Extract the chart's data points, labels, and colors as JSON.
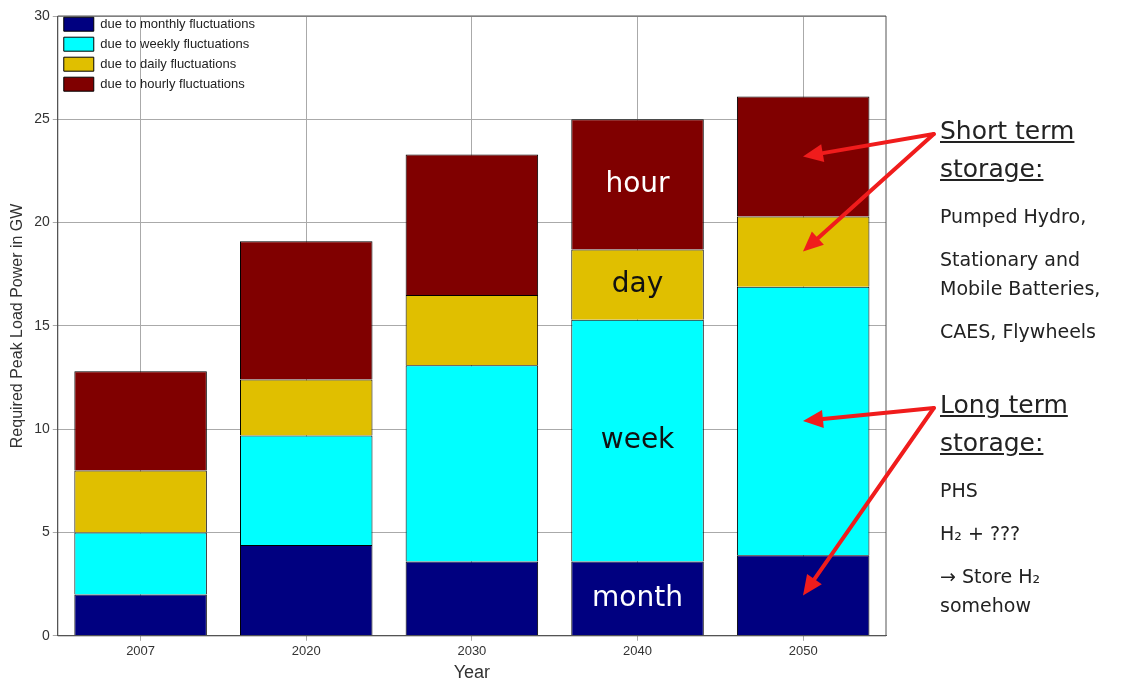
{
  "chart_data": {
    "type": "bar",
    "stacked": true,
    "xlabel": "Year",
    "ylabel": "Required Peak Load Power in GW",
    "categories": [
      "2007",
      "2020",
      "2030",
      "2040",
      "2050"
    ],
    "series": [
      {
        "name": "due to monthly fluctuations",
        "color": "#000080",
        "values": [
          2.0,
          4.4,
          3.6,
          3.6,
          3.9
        ]
      },
      {
        "name": "due to weekly fluctuations",
        "color": "#00ffff",
        "values": [
          3.0,
          5.3,
          9.5,
          11.7,
          13.0
        ]
      },
      {
        "name": "due to daily fluctuations",
        "color": "#e0bf00",
        "values": [
          3.0,
          2.7,
          3.4,
          3.4,
          3.4
        ]
      },
      {
        "name": "due to hourly fluctuations",
        "color": "#800000",
        "values": [
          4.8,
          6.7,
          6.8,
          6.3,
          5.8
        ]
      }
    ],
    "ylim": [
      0,
      30
    ],
    "yticks": [
      0,
      5,
      10,
      15,
      20,
      25,
      30
    ],
    "grid": true,
    "legend": "top left",
    "annotations": [
      "hour",
      "day",
      "week",
      "month",
      "Short term storage:",
      "Pumped Hydro,",
      "Stationary and Mobile Batteries,",
      "CAES, Flywheels",
      "Long term storage:",
      "PHS",
      "H₂ + ???",
      "→ Store H₂ somehow"
    ]
  }
}
